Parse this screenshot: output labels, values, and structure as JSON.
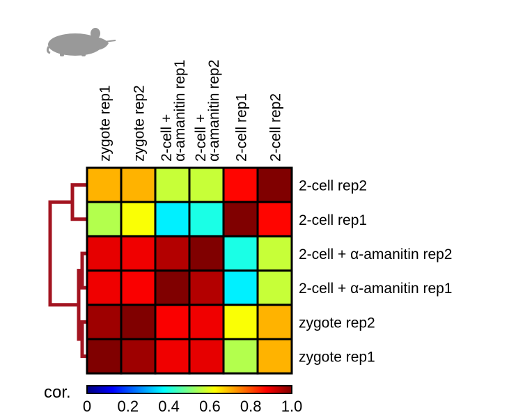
{
  "chart_data": {
    "type": "heatmap",
    "columns": [
      "zygote rep1",
      "zygote rep2",
      "2-cell +\nα-amanitin rep1",
      "2-cell +\nα-amanitin rep2",
      "2-cell rep1",
      "2-cell rep2"
    ],
    "rows": [
      "2-cell rep2",
      "2-cell rep1",
      "2-cell + α-amanitin rep2",
      "2-cell + α-amanitin rep1",
      "zygote rep2",
      "zygote rep1"
    ],
    "values": [
      [
        0.7,
        0.7,
        0.57,
        0.57,
        0.87,
        1.0
      ],
      [
        0.55,
        0.62,
        0.36,
        0.4,
        1.0,
        0.87
      ],
      [
        0.9,
        0.89,
        0.95,
        1.0,
        0.4,
        0.57
      ],
      [
        0.89,
        0.88,
        1.0,
        0.95,
        0.36,
        0.57
      ],
      [
        0.97,
        1.0,
        0.88,
        0.89,
        0.62,
        0.7
      ],
      [
        1.0,
        0.97,
        0.89,
        0.9,
        0.55,
        0.7
      ]
    ],
    "colorbar": {
      "label": "cor.",
      "ticks": [
        "0",
        "0.2",
        "0.4",
        "0.6",
        "0.8",
        "1.0"
      ],
      "range": [
        0,
        1
      ],
      "colors": [
        "#00007f",
        "#0000ff",
        "#0080ff",
        "#00ffff",
        "#80ff80",
        "#ffff00",
        "#ff8000",
        "#ff0000",
        "#800000"
      ]
    },
    "dendrogram": {
      "color": "#a31420",
      "merges": [
        [
          "zygote rep1",
          "zygote rep2"
        ],
        [
          "2-cell + α-amanitin rep1",
          "2-cell + α-amanitin rep2"
        ],
        [
          "2-cell rep1",
          "2-cell rep2"
        ]
      ]
    }
  },
  "colors": {
    "grid": "#000000",
    "mouse": "#999999"
  },
  "icon": "mouse-icon"
}
